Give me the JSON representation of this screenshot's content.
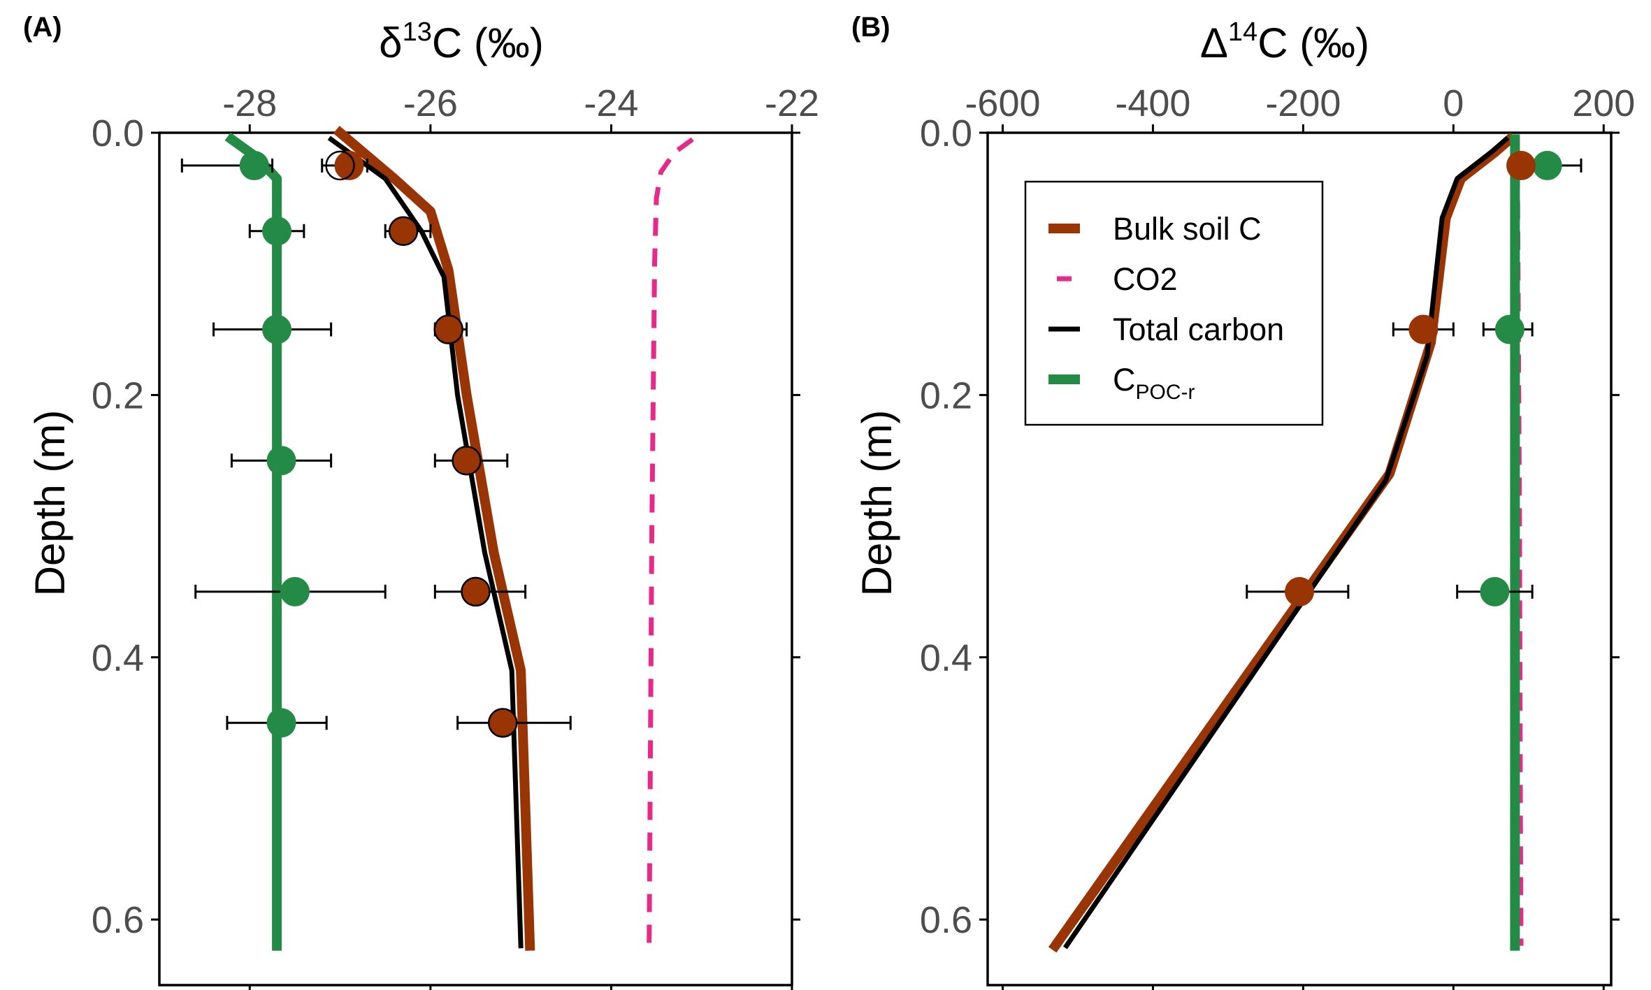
{
  "panels": [
    {
      "label": "(A)",
      "xlabel_main": "δ",
      "xlabel_sup": "13",
      "xlabel_rest": "C (‰)",
      "ylabel": "Depth (m)"
    },
    {
      "label": "(B)",
      "xlabel_main": "Δ",
      "xlabel_sup": "14",
      "xlabel_rest": "C (‰)",
      "ylabel": "Depth (m)"
    }
  ],
  "legend": [
    {
      "label": "Bulk soil C",
      "color": "#993404",
      "style": "solid"
    },
    {
      "label": "CO2",
      "color": "#e7298a",
      "style": "dashed"
    },
    {
      "label": "Total carbon",
      "color": "#000000",
      "style": "solid"
    },
    {
      "label_main": "C",
      "label_sub": "POC-r",
      "color": "#238b45",
      "style": "solid"
    }
  ],
  "colors": {
    "bulk": "#993404",
    "co2": "#e7298a",
    "total": "#000000",
    "poc": "#238b45"
  },
  "chart_data": [
    {
      "type": "line",
      "panel": "A",
      "xlabel": "δ13C (‰)",
      "ylabel": "Depth (m)",
      "xlim": [
        -29.0,
        -22.0
      ],
      "ylim": [
        0.65,
        0.0
      ],
      "xticks_top": [
        "-28",
        "-26",
        "-24",
        "-22"
      ],
      "yticks": [
        "0.0",
        "0.2",
        "0.4",
        "0.6"
      ],
      "series": [
        {
          "name": "Bulk soil C",
          "style": "line",
          "x": [
            -27.0,
            -26.4,
            -26.0,
            -25.8,
            -25.6,
            -25.3,
            -25.0,
            -24.9
          ],
          "y": [
            0.0,
            0.035,
            0.06,
            0.105,
            0.2,
            0.32,
            0.41,
            0.62
          ]
        },
        {
          "name": "Total carbon",
          "style": "line",
          "x": [
            -27.1,
            -26.5,
            -26.1,
            -25.85,
            -25.7,
            -25.4,
            -25.1,
            -25.0
          ],
          "y": [
            0.005,
            0.035,
            0.075,
            0.11,
            0.2,
            0.32,
            0.41,
            0.62
          ]
        },
        {
          "name": "CO2",
          "style": "line",
          "x": [
            -23.1,
            -23.3,
            -23.45,
            -23.5,
            -23.52,
            -23.55,
            -23.58
          ],
          "y": [
            0.005,
            0.015,
            0.03,
            0.05,
            0.1,
            0.3,
            0.62
          ]
        },
        {
          "name": "C POC-r",
          "style": "line",
          "x": [
            -28.2,
            -27.9,
            -27.7,
            -27.7,
            -27.7,
            -27.7,
            -27.7
          ],
          "y": [
            0.005,
            0.02,
            0.035,
            0.1,
            0.3,
            0.5,
            0.62
          ]
        },
        {
          "name": "Bulk soil C",
          "style": "points",
          "x": [
            -26.9,
            -26.3,
            -25.8,
            -25.6,
            -25.5,
            -25.2
          ],
          "y": [
            0.025,
            0.075,
            0.15,
            0.25,
            0.35,
            0.45
          ]
        },
        {
          "name": "Total carbon",
          "style": "open-points",
          "x": [
            -27.0,
            -26.3,
            -25.8,
            -25.6,
            -25.5,
            -25.2
          ],
          "y": [
            0.025,
            0.075,
            0.15,
            0.25,
            0.35,
            0.45
          ],
          "xerr_low": [
            -27.2,
            -26.5,
            -25.95,
            -25.95,
            -25.95,
            -25.7
          ],
          "xerr_high": [
            -26.7,
            -26.0,
            -25.6,
            -25.15,
            -24.95,
            -24.45
          ]
        },
        {
          "name": "C POC-r",
          "style": "points",
          "x": [
            -27.95,
            -27.7,
            -27.7,
            -27.65,
            -27.5,
            -27.65
          ],
          "y": [
            0.025,
            0.075,
            0.15,
            0.25,
            0.35,
            0.45
          ],
          "xerr_low": [
            -28.75,
            -28.0,
            -28.4,
            -28.2,
            -28.6,
            -28.25
          ],
          "xerr_high": [
            -27.75,
            -27.4,
            -27.1,
            -27.1,
            -26.5,
            -27.15
          ]
        }
      ]
    },
    {
      "type": "line",
      "panel": "B",
      "xlabel": "Δ14C (‰)",
      "ylabel": "Depth (m)",
      "xlim": [
        -620,
        210
      ],
      "ylim": [
        0.65,
        0.0
      ],
      "xticks_top": [
        "-600",
        "-400",
        "-200",
        "0",
        "200"
      ],
      "yticks": [
        "0.0",
        "0.2",
        "0.4",
        "0.6"
      ],
      "series": [
        {
          "name": "Bulk soil C",
          "style": "line",
          "x": [
            75,
            55,
            10,
            -10,
            -30,
            -85,
            -530
          ],
          "y": [
            0.005,
            0.015,
            0.035,
            0.065,
            0.16,
            0.26,
            0.62
          ]
        },
        {
          "name": "Total carbon",
          "style": "line",
          "x": [
            70,
            50,
            5,
            -15,
            -35,
            -90,
            -515
          ],
          "y": [
            0.005,
            0.015,
            0.035,
            0.065,
            0.17,
            0.265,
            0.62
          ]
        },
        {
          "name": "CO2",
          "style": "line",
          "x": [
            85,
            86,
            87,
            88,
            89,
            90
          ],
          "y": [
            0.005,
            0.1,
            0.2,
            0.3,
            0.5,
            0.62
          ]
        },
        {
          "name": "C POC-r",
          "style": "line",
          "x": [
            82,
            82,
            82,
            82,
            82,
            82
          ],
          "y": [
            0.005,
            0.1,
            0.2,
            0.3,
            0.5,
            0.62
          ]
        },
        {
          "name": "C POC-r",
          "style": "points",
          "x": [
            125,
            75,
            55
          ],
          "y": [
            0.025,
            0.15,
            0.35
          ],
          "xerr_low": [
            90,
            40,
            5
          ],
          "xerr_high": [
            170,
            105,
            105
          ]
        },
        {
          "name": "Bulk soil C",
          "style": "points",
          "x": [
            90,
            -40,
            -205
          ],
          "y": [
            0.025,
            0.15,
            0.35
          ],
          "xerr_low": [
            90,
            -80,
            -275
          ],
          "xerr_high": [
            90,
            0,
            -140
          ]
        }
      ]
    }
  ]
}
